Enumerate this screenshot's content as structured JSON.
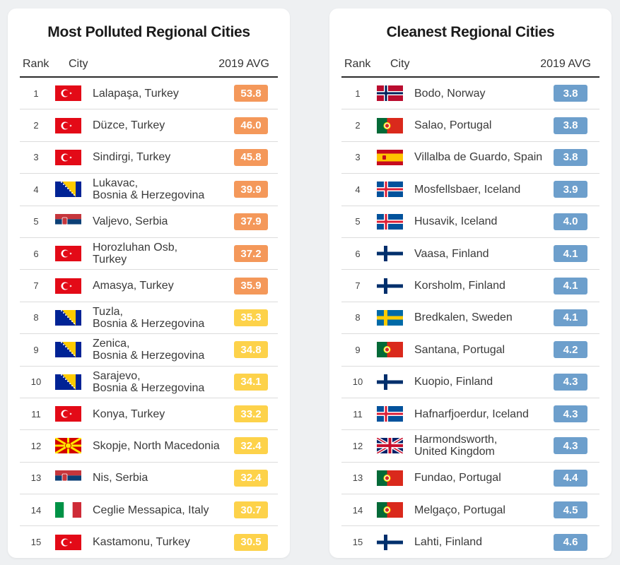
{
  "left": {
    "title": "Most Polluted Regional Cities",
    "col_rank": "Rank",
    "col_city": "City",
    "col_avg": "2019 AVG",
    "rows": [
      {
        "rank": "1",
        "flag": "turkey",
        "city": "Lalapaşa, Turkey",
        "value": "53.8",
        "color": "#f4985a"
      },
      {
        "rank": "2",
        "flag": "turkey",
        "city": "Düzce, Turkey",
        "value": "46.0",
        "color": "#f4985a"
      },
      {
        "rank": "3",
        "flag": "turkey",
        "city": "Sindirgi, Turkey",
        "value": "45.8",
        "color": "#f4985a"
      },
      {
        "rank": "4",
        "flag": "bosnia",
        "city": "Lukavac,\nBosnia & Herzegovina",
        "value": "39.9",
        "color": "#f4985a"
      },
      {
        "rank": "5",
        "flag": "serbia",
        "city": "Valjevo, Serbia",
        "value": "37.9",
        "color": "#f4985a"
      },
      {
        "rank": "6",
        "flag": "turkey",
        "city": "Horozluhan Osb,\nTurkey",
        "value": "37.2",
        "color": "#f4985a"
      },
      {
        "rank": "7",
        "flag": "turkey",
        "city": "Amasya, Turkey",
        "value": "35.9",
        "color": "#f4985a"
      },
      {
        "rank": "8",
        "flag": "bosnia",
        "city": "Tuzla,\nBosnia & Herzegovina",
        "value": "35.3",
        "color": "#fdd24a"
      },
      {
        "rank": "9",
        "flag": "bosnia",
        "city": "Zenica,\nBosnia & Herzegovina",
        "value": "34.8",
        "color": "#fdd24a"
      },
      {
        "rank": "10",
        "flag": "bosnia",
        "city": "Sarajevo,\nBosnia & Herzegovina",
        "value": "34.1",
        "color": "#fdd24a"
      },
      {
        "rank": "11",
        "flag": "turkey",
        "city": "Konya, Turkey",
        "value": "33.2",
        "color": "#fdd24a"
      },
      {
        "rank": "12",
        "flag": "macedonia",
        "city": "Skopje, North Macedonia",
        "value": "32.4",
        "color": "#fdd24a"
      },
      {
        "rank": "13",
        "flag": "serbia",
        "city": "Nis, Serbia",
        "value": "32.4",
        "color": "#fdd24a"
      },
      {
        "rank": "14",
        "flag": "italy",
        "city": "Ceglie Messapica, Italy",
        "value": "30.7",
        "color": "#fdd24a"
      },
      {
        "rank": "15",
        "flag": "turkey",
        "city": "Kastamonu, Turkey",
        "value": "30.5",
        "color": "#fdd24a"
      }
    ]
  },
  "right": {
    "title": "Cleanest Regional Cities",
    "col_rank": "Rank",
    "col_city": "City",
    "col_avg": "2019 AVG",
    "rows": [
      {
        "rank": "1",
        "flag": "norway",
        "city": "Bodo, Norway",
        "value": "3.8",
        "color": "#6d9fcc"
      },
      {
        "rank": "2",
        "flag": "portugal",
        "city": "Salao, Portugal",
        "value": "3.8",
        "color": "#6d9fcc"
      },
      {
        "rank": "3",
        "flag": "spain",
        "city": "Villalba de Guardo, Spain",
        "value": "3.8",
        "color": "#6d9fcc"
      },
      {
        "rank": "4",
        "flag": "iceland",
        "city": "Mosfellsbaer, Iceland",
        "value": "3.9",
        "color": "#6d9fcc"
      },
      {
        "rank": "5",
        "flag": "iceland",
        "city": "Husavik, Iceland",
        "value": "4.0",
        "color": "#6d9fcc"
      },
      {
        "rank": "6",
        "flag": "finland",
        "city": "Vaasa, Finland",
        "value": "4.1",
        "color": "#6d9fcc"
      },
      {
        "rank": "7",
        "flag": "finland",
        "city": "Korsholm, Finland",
        "value": "4.1",
        "color": "#6d9fcc"
      },
      {
        "rank": "8",
        "flag": "sweden",
        "city": "Bredkalen, Sweden",
        "value": "4.1",
        "color": "#6d9fcc"
      },
      {
        "rank": "9",
        "flag": "portugal",
        "city": "Santana, Portugal",
        "value": "4.2",
        "color": "#6d9fcc"
      },
      {
        "rank": "10",
        "flag": "finland",
        "city": "Kuopio, Finland",
        "value": "4.3",
        "color": "#6d9fcc"
      },
      {
        "rank": "11",
        "flag": "iceland",
        "city": "Hafnarfjoerdur, Iceland",
        "value": "4.3",
        "color": "#6d9fcc"
      },
      {
        "rank": "12",
        "flag": "uk",
        "city": "Harmondsworth,\nUnited Kingdom",
        "value": "4.3",
        "color": "#6d9fcc"
      },
      {
        "rank": "13",
        "flag": "portugal",
        "city": "Fundao, Portugal",
        "value": "4.4",
        "color": "#6d9fcc"
      },
      {
        "rank": "14",
        "flag": "portugal",
        "city": "Melgaço, Portugal",
        "value": "4.5",
        "color": "#6d9fcc"
      },
      {
        "rank": "15",
        "flag": "finland",
        "city": "Lahti, Finland",
        "value": "4.6",
        "color": "#6d9fcc"
      }
    ]
  }
}
